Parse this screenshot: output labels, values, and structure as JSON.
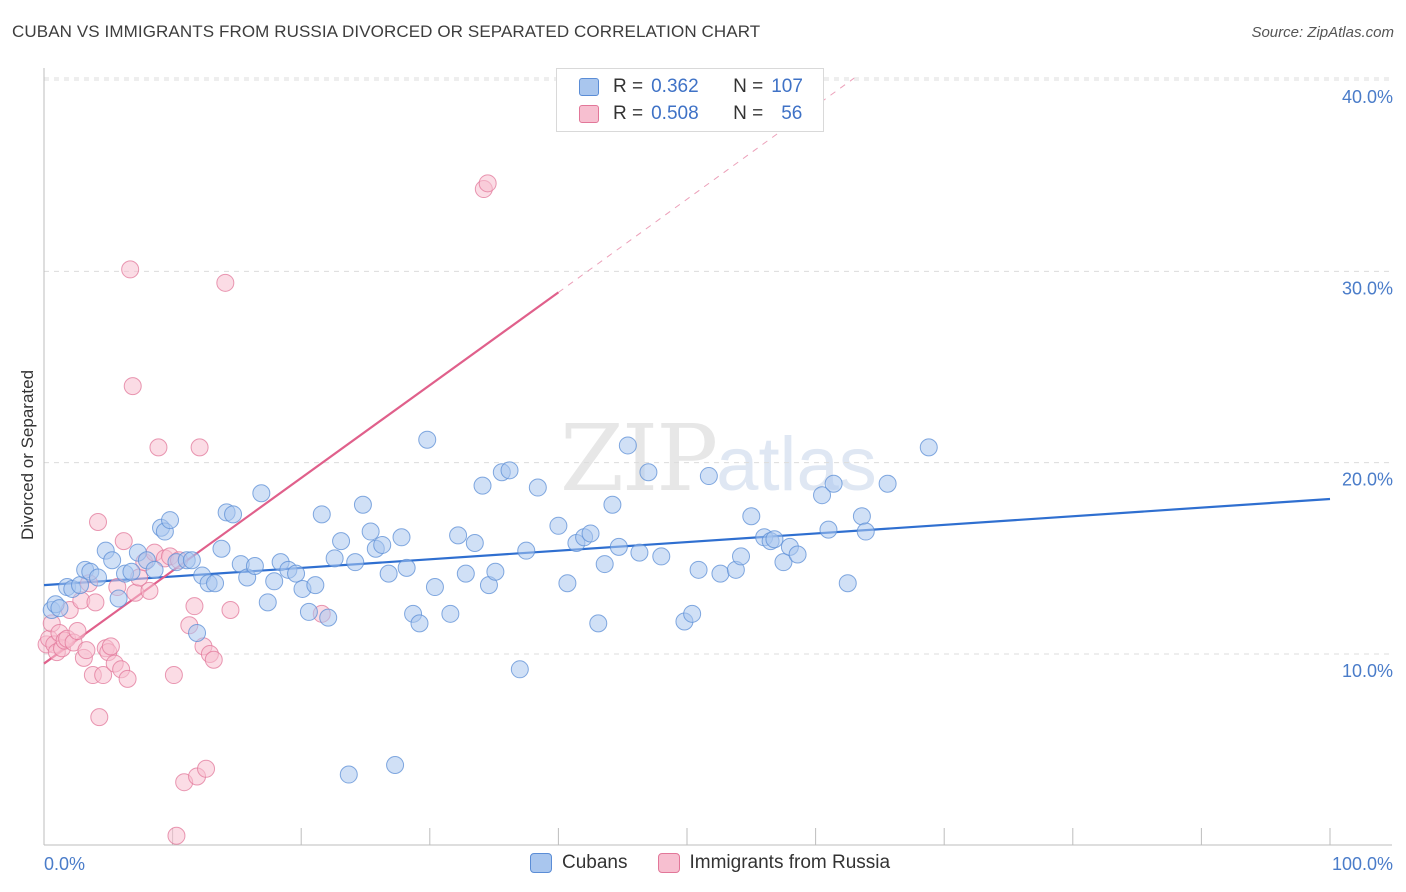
{
  "title": "CUBAN VS IMMIGRANTS FROM RUSSIA DIVORCED OR SEPARATED CORRELATION CHART",
  "source": "Source: ZipAtlas.com",
  "watermark": {
    "zip": "ZIP",
    "atlas": "atlas"
  },
  "legend": {
    "r_label": "R =",
    "n_label": "N =",
    "rows": [
      {
        "r": "0.362",
        "n": "107",
        "color": "#a9c6ee",
        "border": "#5b8dd6"
      },
      {
        "r": "0.508",
        "n": "56",
        "color": "#f7bfd0",
        "border": "#e27799"
      }
    ]
  },
  "bottom_legend": [
    {
      "label": "Cubans",
      "color": "#a9c6ee",
      "border": "#5b8dd6"
    },
    {
      "label": "Immigrants from Russia",
      "color": "#f7bfd0",
      "border": "#e27799"
    }
  ],
  "chart_data": {
    "type": "scatter",
    "title": "CUBAN VS IMMIGRANTS FROM RUSSIA DIVORCED OR SEPARATED CORRELATION CHART",
    "xlabel": "",
    "ylabel": "Divorced or Separated",
    "xlim": [
      0,
      100
    ],
    "ylim": [
      0,
      42
    ],
    "x_tick_labels": [
      "0.0%",
      "100.0%"
    ],
    "y_ticks": [
      10,
      20,
      30,
      40
    ],
    "y_tick_labels": [
      "10.0%",
      "20.0%",
      "30.0%",
      "40.0%"
    ],
    "grid": true,
    "legend_position": "top-center",
    "series": [
      {
        "name": "Cubans",
        "color": "#5b8dd6",
        "fill": "#a9c6ee",
        "trend": {
          "x": [
            0,
            100
          ],
          "y": [
            13.6,
            18.1
          ],
          "color": "#2f6fd0"
        },
        "points": [
          [
            0.6,
            12.3
          ],
          [
            0.9,
            12.6
          ],
          [
            1.2,
            12.4
          ],
          [
            1.8,
            13.5
          ],
          [
            2.2,
            13.4
          ],
          [
            2.8,
            13.6
          ],
          [
            3.2,
            14.4
          ],
          [
            3.6,
            14.3
          ],
          [
            4.2,
            14.0
          ],
          [
            4.8,
            15.4
          ],
          [
            5.3,
            14.9
          ],
          [
            5.8,
            12.9
          ],
          [
            6.3,
            14.2
          ],
          [
            6.8,
            14.3
          ],
          [
            7.3,
            15.3
          ],
          [
            8.0,
            14.9
          ],
          [
            8.6,
            14.4
          ],
          [
            9.1,
            16.6
          ],
          [
            9.4,
            16.4
          ],
          [
            9.8,
            17.0
          ],
          [
            10.3,
            14.8
          ],
          [
            11.1,
            14.9
          ],
          [
            11.5,
            14.9
          ],
          [
            11.9,
            11.1
          ],
          [
            12.3,
            14.1
          ],
          [
            12.8,
            13.7
          ],
          [
            13.3,
            13.7
          ],
          [
            13.8,
            15.5
          ],
          [
            14.2,
            17.4
          ],
          [
            14.7,
            17.3
          ],
          [
            15.3,
            14.7
          ],
          [
            15.8,
            14.0
          ],
          [
            16.4,
            14.6
          ],
          [
            16.9,
            18.4
          ],
          [
            17.4,
            12.7
          ],
          [
            17.9,
            13.8
          ],
          [
            18.4,
            14.8
          ],
          [
            19.0,
            14.4
          ],
          [
            19.6,
            14.2
          ],
          [
            20.1,
            13.4
          ],
          [
            20.6,
            12.2
          ],
          [
            21.1,
            13.6
          ],
          [
            21.6,
            17.3
          ],
          [
            22.1,
            11.9
          ],
          [
            22.6,
            15.0
          ],
          [
            23.1,
            15.9
          ],
          [
            23.7,
            3.7
          ],
          [
            24.2,
            14.8
          ],
          [
            24.8,
            17.8
          ],
          [
            25.4,
            16.4
          ],
          [
            25.8,
            15.5
          ],
          [
            26.3,
            15.7
          ],
          [
            26.8,
            14.2
          ],
          [
            27.3,
            4.2
          ],
          [
            27.8,
            16.1
          ],
          [
            28.2,
            14.5
          ],
          [
            28.7,
            12.1
          ],
          [
            29.2,
            11.6
          ],
          [
            29.8,
            21.2
          ],
          [
            30.4,
            13.5
          ],
          [
            31.6,
            12.1
          ],
          [
            32.2,
            16.2
          ],
          [
            32.8,
            14.2
          ],
          [
            33.5,
            15.8
          ],
          [
            34.1,
            18.8
          ],
          [
            34.6,
            13.6
          ],
          [
            35.1,
            14.3
          ],
          [
            35.6,
            19.5
          ],
          [
            36.2,
            19.6
          ],
          [
            37.0,
            9.2
          ],
          [
            37.5,
            15.4
          ],
          [
            38.4,
            18.7
          ],
          [
            40.0,
            16.7
          ],
          [
            40.7,
            13.7
          ],
          [
            41.4,
            15.8
          ],
          [
            42.0,
            16.1
          ],
          [
            42.5,
            16.3
          ],
          [
            43.1,
            11.6
          ],
          [
            43.6,
            14.7
          ],
          [
            44.2,
            17.8
          ],
          [
            44.7,
            15.6
          ],
          [
            45.4,
            20.9
          ],
          [
            46.3,
            15.3
          ],
          [
            47.0,
            19.5
          ],
          [
            48.0,
            15.1
          ],
          [
            49.8,
            11.7
          ],
          [
            50.4,
            12.1
          ],
          [
            50.9,
            14.4
          ],
          [
            51.7,
            19.3
          ],
          [
            52.6,
            14.2
          ],
          [
            53.8,
            14.4
          ],
          [
            54.2,
            15.1
          ],
          [
            55.0,
            17.2
          ],
          [
            56.0,
            16.1
          ],
          [
            56.5,
            15.9
          ],
          [
            56.8,
            16.0
          ],
          [
            57.5,
            14.8
          ],
          [
            58.0,
            15.6
          ],
          [
            58.6,
            15.2
          ],
          [
            60.5,
            18.3
          ],
          [
            61.0,
            16.5
          ],
          [
            61.4,
            18.9
          ],
          [
            62.5,
            13.7
          ],
          [
            63.6,
            17.2
          ],
          [
            63.9,
            16.4
          ],
          [
            65.6,
            18.9
          ],
          [
            68.8,
            20.8
          ]
        ]
      },
      {
        "name": "Immigrants from Russia",
        "color": "#e27799",
        "fill": "#f7bfd0",
        "trend": {
          "x": [
            0,
            40
          ],
          "y": [
            9.5,
            28.9
          ],
          "color": "#e0608b",
          "extension_to_x": 63,
          "extension_y": 40.1
        },
        "points": [
          [
            0.2,
            10.5
          ],
          [
            0.4,
            10.8
          ],
          [
            0.6,
            11.6
          ],
          [
            0.8,
            10.5
          ],
          [
            1.0,
            10.1
          ],
          [
            1.2,
            11.1
          ],
          [
            1.4,
            10.3
          ],
          [
            1.6,
            10.7
          ],
          [
            1.8,
            10.8
          ],
          [
            2.0,
            12.3
          ],
          [
            2.3,
            10.6
          ],
          [
            2.6,
            11.2
          ],
          [
            2.9,
            12.8
          ],
          [
            3.1,
            9.8
          ],
          [
            3.3,
            10.2
          ],
          [
            3.5,
            13.7
          ],
          [
            3.8,
            8.9
          ],
          [
            4.0,
            12.7
          ],
          [
            4.2,
            16.9
          ],
          [
            4.3,
            6.7
          ],
          [
            4.6,
            8.9
          ],
          [
            4.8,
            10.3
          ],
          [
            5.0,
            10.1
          ],
          [
            5.2,
            10.4
          ],
          [
            5.5,
            9.5
          ],
          [
            5.7,
            13.5
          ],
          [
            6.0,
            9.2
          ],
          [
            6.2,
            15.9
          ],
          [
            6.5,
            8.7
          ],
          [
            6.7,
            30.1
          ],
          [
            6.9,
            24.0
          ],
          [
            7.1,
            13.2
          ],
          [
            7.4,
            14.0
          ],
          [
            7.8,
            14.8
          ],
          [
            8.2,
            13.3
          ],
          [
            8.6,
            15.3
          ],
          [
            8.9,
            20.8
          ],
          [
            9.4,
            15.0
          ],
          [
            9.8,
            15.1
          ],
          [
            10.1,
            8.9
          ],
          [
            10.3,
            0.5
          ],
          [
            10.5,
            14.9
          ],
          [
            10.9,
            3.3
          ],
          [
            11.3,
            11.5
          ],
          [
            11.7,
            12.5
          ],
          [
            11.9,
            3.6
          ],
          [
            12.1,
            20.8
          ],
          [
            12.4,
            10.4
          ],
          [
            12.6,
            4.0
          ],
          [
            12.9,
            10.0
          ],
          [
            13.2,
            9.7
          ],
          [
            14.1,
            29.4
          ],
          [
            14.5,
            12.3
          ],
          [
            21.6,
            12.1
          ],
          [
            34.2,
            34.3
          ],
          [
            34.5,
            34.6
          ]
        ]
      }
    ]
  }
}
